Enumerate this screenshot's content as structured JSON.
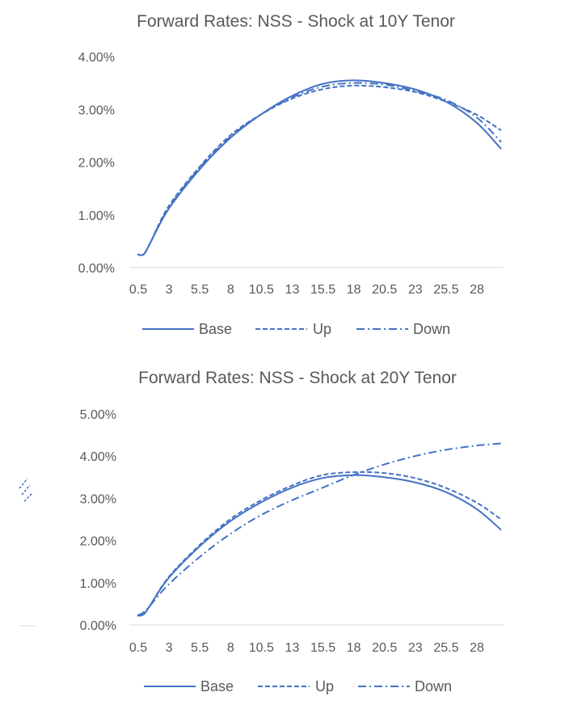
{
  "charts": {
    "colors": {
      "series": "#4472c4",
      "axis": "#d9d9d9",
      "text": "#595959"
    },
    "legend": {
      "base": "Base",
      "up": "Up",
      "down": "Down"
    }
  },
  "chart_data": [
    {
      "type": "line",
      "title": "Forward Rates: NSS - Shock at 10Y Tenor",
      "xlabel": "",
      "ylabel": "",
      "x": [
        0.5,
        1,
        1.5,
        3,
        5.5,
        8,
        10.5,
        13,
        15.5,
        18,
        20.5,
        23,
        25.5,
        28,
        30
      ],
      "x_tick_labels": [
        "0.5",
        "3",
        "5.5",
        "8",
        "10.5",
        "13",
        "15.5",
        "18",
        "20.5",
        "23",
        "25.5",
        "28"
      ],
      "y_tick_labels": [
        "0.00%",
        "1.00%",
        "2.00%",
        "3.00%",
        "4.00%"
      ],
      "ylim": [
        0,
        4
      ],
      "y_unit": "%",
      "grid": false,
      "legend_position": "bottom",
      "series": [
        {
          "name": "Base",
          "style": "solid",
          "values": [
            0.25,
            0.25,
            0.45,
            1.1,
            1.85,
            2.45,
            2.9,
            3.25,
            3.48,
            3.55,
            3.5,
            3.38,
            3.15,
            2.75,
            2.25
          ]
        },
        {
          "name": "Up",
          "style": "dashed",
          "values": [
            0.25,
            0.25,
            0.45,
            1.15,
            1.9,
            2.5,
            2.9,
            3.2,
            3.38,
            3.45,
            3.42,
            3.33,
            3.15,
            2.9,
            2.6
          ]
        },
        {
          "name": "Down",
          "style": "dashdot",
          "values": [
            0.25,
            0.25,
            0.45,
            1.12,
            1.88,
            2.47,
            2.9,
            3.22,
            3.43,
            3.5,
            3.47,
            3.35,
            3.18,
            2.85,
            2.38
          ]
        }
      ]
    },
    {
      "type": "line",
      "title": "Forward Rates: NSS - Shock at 20Y Tenor",
      "xlabel": "",
      "ylabel": "",
      "x": [
        0.5,
        1,
        1.5,
        3,
        5.5,
        8,
        10.5,
        13,
        15.5,
        18,
        20.5,
        23,
        25.5,
        28,
        30
      ],
      "x_tick_labels": [
        "0.5",
        "3",
        "5.5",
        "8",
        "10.5",
        "13",
        "15.5",
        "18",
        "20.5",
        "23",
        "25.5",
        "28"
      ],
      "y_tick_labels": [
        "0.00%",
        "1.00%",
        "2.00%",
        "3.00%",
        "4.00%",
        "5.00%"
      ],
      "ylim": [
        0,
        5
      ],
      "y_unit": "%",
      "grid": false,
      "legend_position": "bottom",
      "series": [
        {
          "name": "Base",
          "style": "solid",
          "values": [
            0.22,
            0.25,
            0.45,
            1.1,
            1.85,
            2.45,
            2.9,
            3.25,
            3.48,
            3.55,
            3.5,
            3.38,
            3.15,
            2.75,
            2.25
          ]
        },
        {
          "name": "Up",
          "style": "dashed",
          "values": [
            0.22,
            0.25,
            0.45,
            1.12,
            1.88,
            2.5,
            2.95,
            3.3,
            3.55,
            3.62,
            3.6,
            3.48,
            3.25,
            2.9,
            2.5
          ]
        },
        {
          "name": "Down",
          "style": "dashdot",
          "values": [
            0.22,
            0.3,
            0.45,
            0.95,
            1.6,
            2.15,
            2.6,
            2.95,
            3.25,
            3.55,
            3.8,
            4.0,
            4.15,
            4.25,
            4.3
          ]
        }
      ]
    }
  ]
}
